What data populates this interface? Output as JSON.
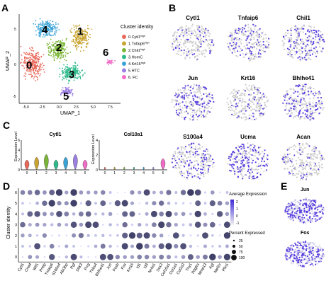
{
  "panels": {
    "A": "A",
    "B": "B",
    "C": "C",
    "D": "D",
    "E": "E"
  },
  "panel_a": {
    "ylabel": "UMAP_2",
    "xlabel": "UMAP_1",
    "x_ticks": [
      "-5.0",
      "-2.5",
      "0.0",
      "2.5",
      "5.0",
      "7.5"
    ],
    "y_ticks": [
      "5",
      "0",
      "-5"
    ],
    "cluster_numbers": [
      "0",
      "1",
      "2",
      "3",
      "4",
      "5",
      "6"
    ],
    "legend_title": "Cluster identity",
    "legend": [
      {
        "label": "0.Cytl1",
        "sup": "high",
        "color": "#e8685a"
      },
      {
        "label": "1.Tnfaip6",
        "sup": "high",
        "color": "#c9a431"
      },
      {
        "label": "2.Chil1",
        "sup": "high",
        "color": "#7ab537"
      },
      {
        "label": "3.HomC",
        "sup": "",
        "color": "#2db98a"
      },
      {
        "label": "4.Krt16",
        "sup": "high",
        "color": "#3aa3d6"
      },
      {
        "label": "5.HTC",
        "sup": "",
        "color": "#9b7fe3"
      },
      {
        "label": "6. FC",
        "sup": "",
        "color": "#f06cc6"
      }
    ]
  },
  "panel_b": {
    "genes": [
      "Cytl1",
      "Tnfaip6",
      "Chil1",
      "Jun",
      "Krt16",
      "Bhlhe41",
      "S100a4",
      "Ucma",
      "Acan"
    ]
  },
  "panel_c": {
    "ylabel": "Expression Level",
    "plots": [
      {
        "gene": "Cytl1",
        "y_ticks": [
          "6",
          "4",
          "2",
          "0"
        ]
      },
      {
        "gene": "Col10a1",
        "y_ticks": [
          "4",
          "2",
          "0"
        ]
      }
    ],
    "x_ticks": [
      "0",
      "1",
      "2",
      "3",
      "4",
      "5",
      "6"
    ],
    "violin_colors": [
      "#e8685a",
      "#c9a431",
      "#7ab537",
      "#2db98a",
      "#3aa3d6",
      "#9b7fe3",
      "#f06cc6"
    ]
  },
  "panel_d": {
    "ylabel": "Cluster identity",
    "clusters": [
      "6",
      "5",
      "4",
      "3",
      "2",
      "1",
      "0"
    ],
    "genes": [
      "Cytl1",
      "Chad",
      "Wif1",
      "Prelp",
      "Tnfaip6",
      "S100a4",
      "Abi3bp",
      "Pgf",
      "Dkk3",
      "Prrg",
      "Thbs4",
      "Bhlhe41",
      "Jun",
      "Fosb",
      "Fos",
      "Krt16",
      "Id1",
      "Id3",
      "Nr4a1",
      "Sox2",
      "Col10a1",
      "Col1a1",
      "Col2a2",
      "Thy1",
      "Pdgfra",
      "Mmp13",
      "Agt",
      "Mef2c",
      "Plin1"
    ],
    "legend_avg_title": "Average Expression",
    "legend_avg_ticks": [
      "2",
      "1",
      "0",
      "-1"
    ],
    "legend_pct_title": "Percent Expressed",
    "legend_pct_labels": [
      "25",
      "50",
      "75",
      "100"
    ]
  },
  "panel_e": {
    "genes": [
      "Jun",
      "Fos"
    ]
  }
}
